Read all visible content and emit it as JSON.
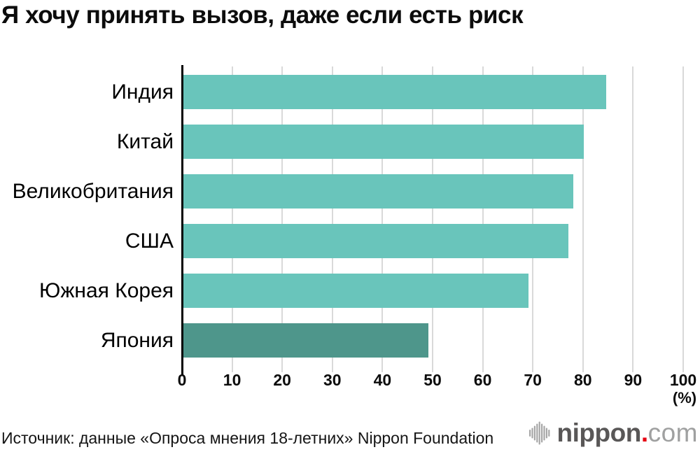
{
  "title": "Я хочу принять вызов, даже если есть риск",
  "chart_data": {
    "type": "bar",
    "orientation": "horizontal",
    "title": "Я хочу принять вызов, даже если есть риск",
    "categories": [
      "Индия",
      "Китай",
      "Великобритания",
      "США",
      "Южная Корея",
      "Япония"
    ],
    "values": [
      84.5,
      80,
      78,
      77,
      69,
      49
    ],
    "xlabel": "(%)",
    "ylabel": "",
    "xlim": [
      0,
      100
    ],
    "xticks": [
      0,
      10,
      20,
      30,
      40,
      50,
      60,
      70,
      80,
      90,
      100
    ],
    "grid": true,
    "legend": false,
    "bar_color": "#69c5bb",
    "highlight_category": "Япония",
    "highlight_color": "#4e968b",
    "gridline_color": "#d9d9d9",
    "axis_color": "#000000"
  },
  "footer": {
    "source": "Источник: данные «Опроса мнения 18-летних» Nippon Foundation",
    "logo": {
      "name": "nippon",
      "dot": ".",
      "tld": "com",
      "icon": "soundwave-icon",
      "icon_color": "#a6a6a6"
    }
  }
}
